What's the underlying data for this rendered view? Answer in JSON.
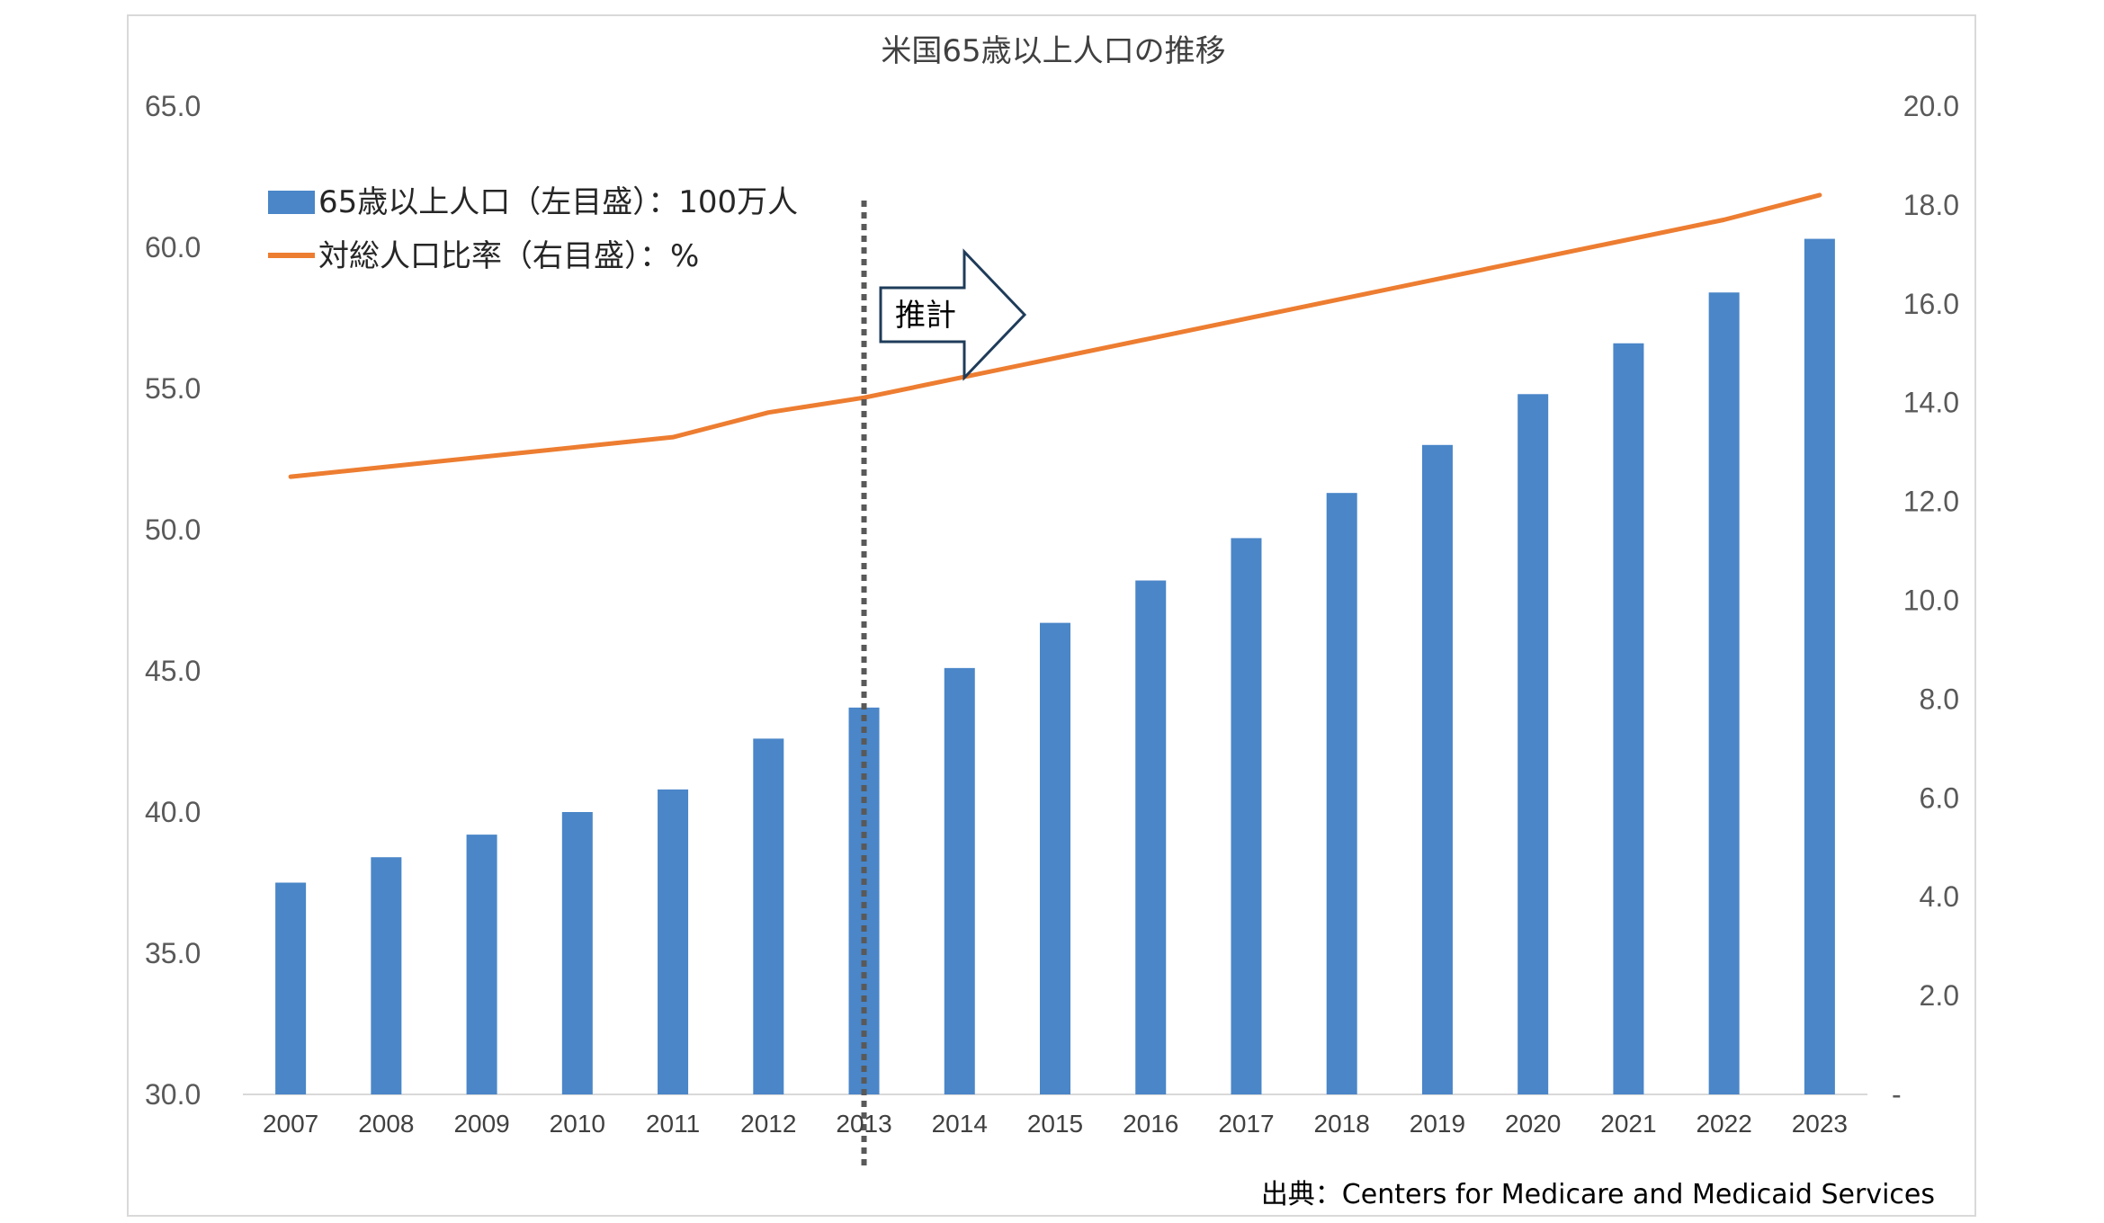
{
  "chart_data": {
    "type": "bar",
    "title": "米国65歳以上人口の推移",
    "categories": [
      "2007",
      "2008",
      "2009",
      "2010",
      "2011",
      "2012",
      "2013",
      "2014",
      "2015",
      "2016",
      "2017",
      "2018",
      "2019",
      "2020",
      "2021",
      "2022",
      "2023"
    ],
    "series": [
      {
        "name": "65歳以上人口（左目盛）：100万人",
        "type": "bar",
        "axis": "left",
        "color": "#4a86c8",
        "values": [
          37.5,
          38.4,
          39.2,
          40.0,
          40.8,
          42.6,
          43.7,
          45.1,
          46.7,
          48.2,
          49.7,
          51.3,
          53.0,
          54.8,
          56.6,
          58.4,
          60.3
        ]
      },
      {
        "name": "対総人口比率（右目盛）：%",
        "type": "line",
        "axis": "right",
        "color": "#ed7d31",
        "values": [
          12.5,
          12.7,
          12.9,
          13.1,
          13.3,
          13.8,
          14.1,
          14.5,
          14.9,
          15.3,
          15.7,
          16.1,
          16.5,
          16.9,
          17.3,
          17.7,
          18.2
        ]
      }
    ],
    "y_left": {
      "min": 30,
      "max": 65,
      "step": 5,
      "tick_labels": [
        "30.0",
        "35.0",
        "40.0",
        "45.0",
        "50.0",
        "55.0",
        "60.0",
        "65.0"
      ]
    },
    "y_right": {
      "min": 0,
      "max": 20,
      "step": 2,
      "tick_labels": [
        "-",
        "2.0",
        "4.0",
        "6.0",
        "8.0",
        "10.0",
        "12.0",
        "14.0",
        "16.0",
        "18.0",
        "20.0"
      ]
    },
    "annotation": {
      "label": "推計",
      "divider_at": "2013",
      "arrow_color": "#1f3c5a"
    },
    "grid": false,
    "legend_position": "top-left",
    "source": "出典：Centers for Medicare and Medicaid Services"
  }
}
